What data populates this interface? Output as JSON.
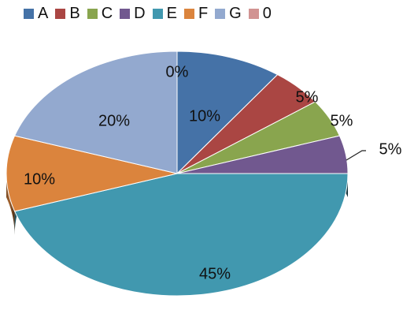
{
  "chart_data": {
    "type": "pie",
    "style": "3d",
    "title": "",
    "legend_position": "top",
    "slices": [
      {
        "label": "A",
        "value": 10,
        "display": "10%",
        "color": "#4572A7"
      },
      {
        "label": "B",
        "value": 5,
        "display": "5%",
        "color": "#AA4643"
      },
      {
        "label": "C",
        "value": 5,
        "display": "5%",
        "color": "#89A54E"
      },
      {
        "label": "D",
        "value": 5,
        "display": "5%",
        "color": "#71588F"
      },
      {
        "label": "E",
        "value": 45,
        "display": "45%",
        "color": "#4198AF"
      },
      {
        "label": "F",
        "value": 10,
        "display": "10%",
        "color": "#DB843D"
      },
      {
        "label": "G",
        "value": 20,
        "display": "20%",
        "color": "#93A9CF"
      },
      {
        "label": "0",
        "value": 0,
        "display": "0%",
        "color": "#D19392"
      }
    ]
  }
}
